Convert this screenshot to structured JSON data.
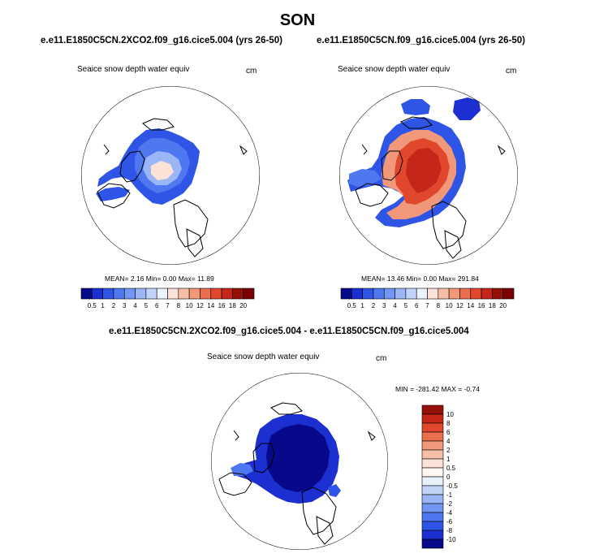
{
  "title": "SON",
  "panels": [
    {
      "id": "left",
      "case": "e.e11.E1850C5CN.2XCO2.f09_g16.cice5.004 (yrs 26-50)",
      "variable": "Seaice snow depth water equiv",
      "units": "cm",
      "stats": "MEAN=   2.16  Min=   0.00  Max=  11.89"
    },
    {
      "id": "right",
      "case": "e.e11.E1850C5CN.f09_g16.cice5.004 (yrs 26-50)",
      "variable": "Seaice snow depth water equiv",
      "units": "cm",
      "stats": "MEAN=  13.46  Min=   0.00  Max= 291.84"
    },
    {
      "id": "diff",
      "case": "e.e11.E1850C5CN.2XCO2.f09_g16.cice5.004 - e.e11.E1850C5CN.f09_g16.cice5.004",
      "variable": "Seaice snow depth water equiv",
      "units": "cm",
      "stats": "MIN = -281.42 MAX =  -0.74"
    }
  ],
  "chart_data": [
    {
      "type": "heatmap",
      "projection": "north-polar-stereographic",
      "colorbar_levels": [
        "0.5",
        "1",
        "2",
        "3",
        "4",
        "5",
        "6",
        "7",
        "8",
        "10",
        "12",
        "14",
        "16",
        "18",
        "20"
      ],
      "colorbar_colors": [
        "#08088a",
        "#1c2fd0",
        "#2f55e6",
        "#4f77ef",
        "#7297f2",
        "#9bb6f6",
        "#c2d3f9",
        "#ecf2fd",
        "#fbe2d6",
        "#f6bea6",
        "#f1977a",
        "#eb6e4e",
        "#e0472c",
        "#c4271a",
        "#951008",
        "#7a0000"
      ],
      "colorbar_orientation": "horizontal"
    },
    {
      "type": "heatmap",
      "projection": "north-polar-stereographic",
      "colorbar_levels": [
        "0.5",
        "1",
        "2",
        "3",
        "4",
        "5",
        "6",
        "7",
        "8",
        "10",
        "12",
        "14",
        "16",
        "18",
        "20"
      ],
      "colorbar_colors": [
        "#08088a",
        "#1c2fd0",
        "#2f55e6",
        "#4f77ef",
        "#7297f2",
        "#9bb6f6",
        "#c2d3f9",
        "#ecf2fd",
        "#fbe2d6",
        "#f6bea6",
        "#f1977a",
        "#eb6e4e",
        "#e0472c",
        "#c4271a",
        "#951008",
        "#7a0000"
      ],
      "colorbar_orientation": "horizontal"
    },
    {
      "type": "heatmap",
      "projection": "north-polar-stereographic",
      "colorbar_levels": [
        "10",
        "8",
        "6",
        "4",
        "2",
        "1",
        "0.5",
        "0",
        "-0.5",
        "-1",
        "-2",
        "-4",
        "-6",
        "-8",
        "-10"
      ],
      "colorbar_colors": [
        "#951008",
        "#c4271a",
        "#e0472c",
        "#eb6e4e",
        "#f1977a",
        "#f6bea6",
        "#fbe2d6",
        "#fff7f0",
        "#e8f0fc",
        "#c2d3f9",
        "#9bb6f6",
        "#7297f2",
        "#4f77ef",
        "#2f55e6",
        "#1c2fd0",
        "#08088a"
      ],
      "colorbar_orientation": "vertical"
    }
  ]
}
